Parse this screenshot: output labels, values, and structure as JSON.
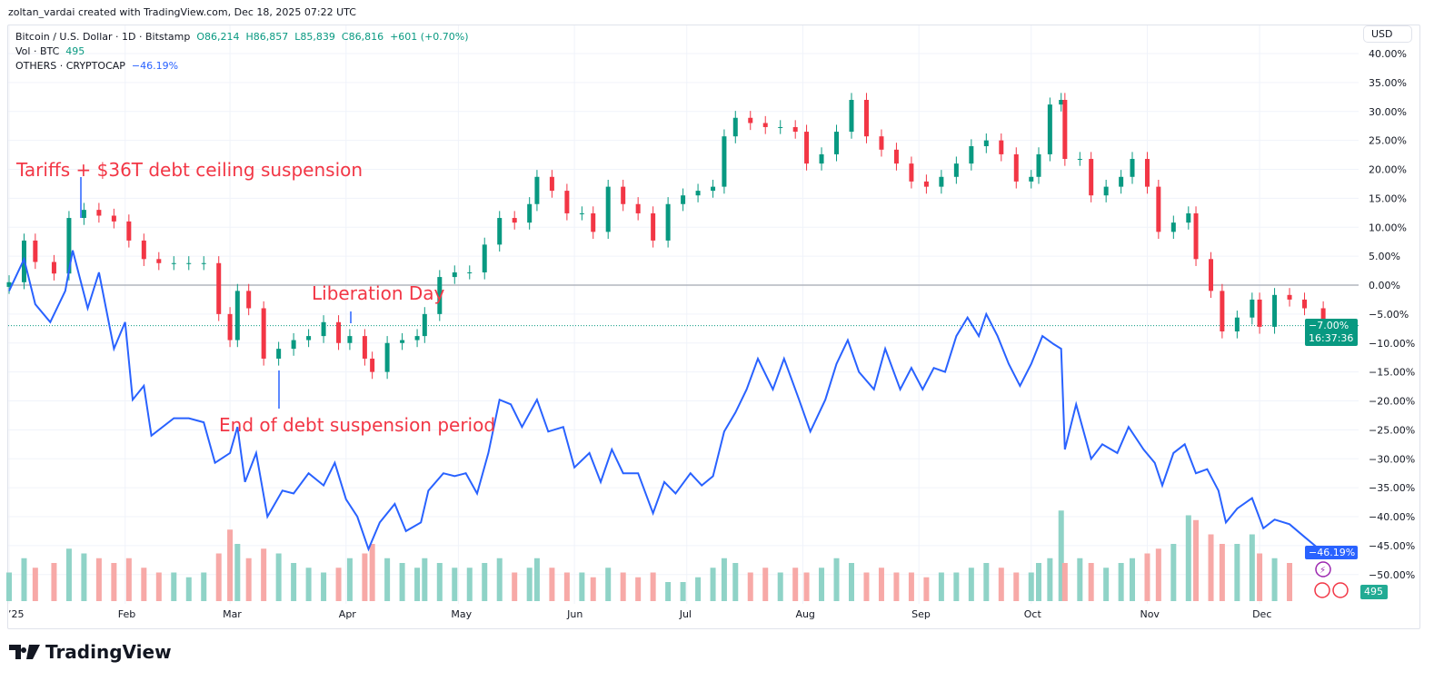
{
  "credit": "zoltan_vardai created with TradingView.com, Dec 18, 2025 07:22 UTC",
  "legend": {
    "symbol": "Bitcoin / U.S. Dollar · 1D · Bitstamp",
    "open": "O86,214",
    "high": "H86,857",
    "low": "L85,839",
    "close": "C86,816",
    "change": "+601 (+0.70%)",
    "vol_label": "Vol · BTC",
    "vol_value": "495",
    "compare_label": "OTHERS · CRYPTOCAP",
    "compare_value": "−46.19%"
  },
  "currency_button": "USD",
  "badges": {
    "btc_pct": "−7.00%",
    "countdown": "16:37:36",
    "others_pct": "−46.19%",
    "volume": "495"
  },
  "brand": "TradingView",
  "colors": {
    "up": "#089981",
    "down": "#f23645",
    "others": "#2962ff",
    "annotation": "#f23645",
    "volume_up": "#8fd3c7",
    "volume_down": "#f7a9a7"
  },
  "chart_data": {
    "type": "line",
    "yaxis": {
      "unit": "%",
      "ylim": [
        -52,
        41
      ],
      "ticks": [
        "40.00%",
        "35.00%",
        "30.00%",
        "25.00%",
        "20.00%",
        "15.00%",
        "10.00%",
        "5.00%",
        "0.00%",
        "−5.00%",
        "−10.00%",
        "−15.00%",
        "−20.00%",
        "−25.00%",
        "−30.00%",
        "−35.00%",
        "−40.00%",
        "−45.00%",
        "−50.00%"
      ]
    },
    "xaxis": {
      "ticks": [
        [
          "2025-01-01",
          "’25"
        ],
        [
          "2025-02-01",
          "Feb"
        ],
        [
          "2025-03-01",
          "Mar"
        ],
        [
          "2025-04-01",
          "Apr"
        ],
        [
          "2025-05-01",
          "May"
        ],
        [
          "2025-06-01",
          "Jun"
        ],
        [
          "2025-07-01",
          "Jul"
        ],
        [
          "2025-08-01",
          "Aug"
        ],
        [
          "2025-09-01",
          "Sep"
        ],
        [
          "2025-10-01",
          "Oct"
        ],
        [
          "2025-11-01",
          "Nov"
        ],
        [
          "2025-12-01",
          "Dec"
        ]
      ]
    },
    "grid": true,
    "series": [
      {
        "name": "Bitcoin / U.S. Dollar",
        "style": "candles",
        "points": [
          [
            "2025-01-01",
            0.5
          ],
          [
            "2025-01-05",
            7.7
          ],
          [
            "2025-01-08",
            4
          ],
          [
            "2025-01-13",
            2
          ],
          [
            "2025-01-17",
            11.6
          ],
          [
            "2025-01-21",
            13
          ],
          [
            "2025-01-25",
            12
          ],
          [
            "2025-01-29",
            11
          ],
          [
            "2025-02-02",
            7.7
          ],
          [
            "2025-02-06",
            4.5
          ],
          [
            "2025-02-10",
            3.8
          ],
          [
            "2025-02-14",
            3.8
          ],
          [
            "2025-02-18",
            3.8
          ],
          [
            "2025-02-22",
            3.8
          ],
          [
            "2025-02-26",
            -5
          ],
          [
            "2025-03-01",
            -9.5
          ],
          [
            "2025-03-03",
            -1
          ],
          [
            "2025-03-06",
            -4
          ],
          [
            "2025-03-10",
            -12.7
          ],
          [
            "2025-03-14",
            -11
          ],
          [
            "2025-03-18",
            -9.5
          ],
          [
            "2025-03-22",
            -8.8
          ],
          [
            "2025-03-26",
            -6.4
          ],
          [
            "2025-03-30",
            -10
          ],
          [
            "2025-04-02",
            -8.8
          ],
          [
            "2025-04-06",
            -12.7
          ],
          [
            "2025-04-08",
            -15
          ],
          [
            "2025-04-12",
            -10
          ],
          [
            "2025-04-16",
            -9.5
          ],
          [
            "2025-04-20",
            -8.8
          ],
          [
            "2025-04-22",
            -5
          ],
          [
            "2025-04-26",
            1.4
          ],
          [
            "2025-04-30",
            2.2
          ],
          [
            "2025-05-04",
            2.2
          ],
          [
            "2025-05-08",
            7
          ],
          [
            "2025-05-12",
            11.6
          ],
          [
            "2025-05-16",
            10.8
          ],
          [
            "2025-05-20",
            14
          ],
          [
            "2025-05-22",
            18.7
          ],
          [
            "2025-05-26",
            16.3
          ],
          [
            "2025-05-30",
            12.4
          ],
          [
            "2025-06-03",
            12.4
          ],
          [
            "2025-06-06",
            9.2
          ],
          [
            "2025-06-10",
            17
          ],
          [
            "2025-06-14",
            14
          ],
          [
            "2025-06-18",
            12.4
          ],
          [
            "2025-06-22",
            7.7
          ],
          [
            "2025-06-26",
            14
          ],
          [
            "2025-06-30",
            15.5
          ],
          [
            "2025-07-04",
            16.3
          ],
          [
            "2025-07-08",
            17
          ],
          [
            "2025-07-11",
            25.7
          ],
          [
            "2025-07-14",
            28.9
          ],
          [
            "2025-07-18",
            28
          ],
          [
            "2025-07-22",
            27.3
          ],
          [
            "2025-07-26",
            27.3
          ],
          [
            "2025-07-30",
            26.5
          ],
          [
            "2025-08-02",
            21
          ],
          [
            "2025-08-06",
            22.6
          ],
          [
            "2025-08-10",
            26.5
          ],
          [
            "2025-08-14",
            32
          ],
          [
            "2025-08-18",
            25.7
          ],
          [
            "2025-08-22",
            23.4
          ],
          [
            "2025-08-26",
            21
          ],
          [
            "2025-08-30",
            17.9
          ],
          [
            "2025-09-03",
            17
          ],
          [
            "2025-09-07",
            18.7
          ],
          [
            "2025-09-11",
            21
          ],
          [
            "2025-09-15",
            24
          ],
          [
            "2025-09-19",
            25
          ],
          [
            "2025-09-23",
            22.6
          ],
          [
            "2025-09-27",
            17.9
          ],
          [
            "2025-10-01",
            18.7
          ],
          [
            "2025-10-03",
            22.6
          ],
          [
            "2025-10-06",
            31.2
          ],
          [
            "2025-10-09",
            32
          ],
          [
            "2025-10-10",
            21.8
          ],
          [
            "2025-10-14",
            21.8
          ],
          [
            "2025-10-17",
            15.5
          ],
          [
            "2025-10-21",
            17
          ],
          [
            "2025-10-25",
            18.7
          ],
          [
            "2025-10-28",
            21.8
          ],
          [
            "2025-11-01",
            17
          ],
          [
            "2025-11-04",
            9.2
          ],
          [
            "2025-11-08",
            10.8
          ],
          [
            "2025-11-12",
            12.4
          ],
          [
            "2025-11-14",
            4.5
          ],
          [
            "2025-11-18",
            -1
          ],
          [
            "2025-11-21",
            -8
          ],
          [
            "2025-11-25",
            -5.6
          ],
          [
            "2025-11-29",
            -2.5
          ],
          [
            "2025-12-01",
            -7.2
          ],
          [
            "2025-12-05",
            -1.7
          ],
          [
            "2025-12-09",
            -2.5
          ],
          [
            "2025-12-13",
            -4
          ],
          [
            "2025-12-18",
            -7
          ]
        ]
      },
      {
        "name": "OTHERS · CRYPTOCAP",
        "style": "line",
        "points": [
          [
            "2025-01-01",
            -1
          ],
          [
            "2025-01-05",
            4.5
          ],
          [
            "2025-01-08",
            -3.3
          ],
          [
            "2025-01-12",
            -6.4
          ],
          [
            "2025-01-16",
            -1
          ],
          [
            "2025-01-18",
            6
          ],
          [
            "2025-01-22",
            -4
          ],
          [
            "2025-01-25",
            2.2
          ],
          [
            "2025-01-29",
            -11
          ],
          [
            "2025-02-01",
            -6.4
          ],
          [
            "2025-02-03",
            -19.8
          ],
          [
            "2025-02-06",
            -17.4
          ],
          [
            "2025-02-08",
            -26
          ],
          [
            "2025-02-14",
            -23
          ],
          [
            "2025-02-18",
            -23
          ],
          [
            "2025-02-22",
            -23.7
          ],
          [
            "2025-02-25",
            -30.7
          ],
          [
            "2025-03-01",
            -29
          ],
          [
            "2025-03-03",
            -24.5
          ],
          [
            "2025-03-05",
            -34
          ],
          [
            "2025-03-08",
            -29
          ],
          [
            "2025-03-11",
            -40
          ],
          [
            "2025-03-15",
            -35.5
          ],
          [
            "2025-03-18",
            -36
          ],
          [
            "2025-03-22",
            -32.5
          ],
          [
            "2025-03-26",
            -34.6
          ],
          [
            "2025-03-29",
            -30.7
          ],
          [
            "2025-04-01",
            -37
          ],
          [
            "2025-04-04",
            -40
          ],
          [
            "2025-04-07",
            -45.6
          ],
          [
            "2025-04-10",
            -41
          ],
          [
            "2025-04-14",
            -37.8
          ],
          [
            "2025-04-17",
            -42.5
          ],
          [
            "2025-04-21",
            -41
          ],
          [
            "2025-04-23",
            -35.5
          ],
          [
            "2025-04-27",
            -32.5
          ],
          [
            "2025-04-30",
            -33
          ],
          [
            "2025-05-03",
            -32.5
          ],
          [
            "2025-05-06",
            -36
          ],
          [
            "2025-05-09",
            -29
          ],
          [
            "2025-05-12",
            -19.8
          ],
          [
            "2025-05-15",
            -20.6
          ],
          [
            "2025-05-18",
            -24.5
          ],
          [
            "2025-05-22",
            -19.8
          ],
          [
            "2025-05-25",
            -25.3
          ],
          [
            "2025-05-29",
            -24.5
          ],
          [
            "2025-06-01",
            -31.5
          ],
          [
            "2025-06-05",
            -29
          ],
          [
            "2025-06-08",
            -34
          ],
          [
            "2025-06-11",
            -28.4
          ],
          [
            "2025-06-14",
            -32.5
          ],
          [
            "2025-06-18",
            -32.5
          ],
          [
            "2025-06-22",
            -39.4
          ],
          [
            "2025-06-25",
            -34
          ],
          [
            "2025-06-28",
            -36
          ],
          [
            "2025-07-02",
            -32.5
          ],
          [
            "2025-07-05",
            -34.6
          ],
          [
            "2025-07-08",
            -33
          ],
          [
            "2025-07-11",
            -25.3
          ],
          [
            "2025-07-14",
            -22
          ],
          [
            "2025-07-17",
            -18
          ],
          [
            "2025-07-20",
            -12.7
          ],
          [
            "2025-07-24",
            -18
          ],
          [
            "2025-07-27",
            -12.7
          ],
          [
            "2025-07-31",
            -19.8
          ],
          [
            "2025-08-03",
            -25.3
          ],
          [
            "2025-08-07",
            -19.8
          ],
          [
            "2025-08-10",
            -13.6
          ],
          [
            "2025-08-13",
            -9.5
          ],
          [
            "2025-08-16",
            -15
          ],
          [
            "2025-08-20",
            -18
          ],
          [
            "2025-08-23",
            -11
          ],
          [
            "2025-08-27",
            -18
          ],
          [
            "2025-08-30",
            -14.3
          ],
          [
            "2025-09-02",
            -18
          ],
          [
            "2025-09-05",
            -14.3
          ],
          [
            "2025-09-08",
            -15
          ],
          [
            "2025-09-11",
            -8.8
          ],
          [
            "2025-09-14",
            -5.6
          ],
          [
            "2025-09-17",
            -8.8
          ],
          [
            "2025-09-19",
            -5
          ],
          [
            "2025-09-22",
            -8.8
          ],
          [
            "2025-09-25",
            -13.6
          ],
          [
            "2025-09-28",
            -17.4
          ],
          [
            "2025-10-01",
            -13.6
          ],
          [
            "2025-10-04",
            -8.8
          ],
          [
            "2025-10-07",
            -10.2
          ],
          [
            "2025-10-09",
            -11
          ],
          [
            "2025-10-10",
            -28.4
          ],
          [
            "2025-10-13",
            -20.6
          ],
          [
            "2025-10-17",
            -30
          ],
          [
            "2025-10-20",
            -27.5
          ],
          [
            "2025-10-24",
            -29
          ],
          [
            "2025-10-27",
            -24.5
          ],
          [
            "2025-10-31",
            -28.4
          ],
          [
            "2025-11-03",
            -30.7
          ],
          [
            "2025-11-05",
            -34.6
          ],
          [
            "2025-11-08",
            -29
          ],
          [
            "2025-11-11",
            -27.5
          ],
          [
            "2025-11-14",
            -32.5
          ],
          [
            "2025-11-17",
            -31.8
          ],
          [
            "2025-11-20",
            -35.5
          ],
          [
            "2025-11-22",
            -41
          ],
          [
            "2025-11-25",
            -38.6
          ],
          [
            "2025-11-29",
            -36.8
          ],
          [
            "2025-12-02",
            -42
          ],
          [
            "2025-12-05",
            -40.5
          ],
          [
            "2025-12-09",
            -41.3
          ],
          [
            "2025-12-13",
            -43.5
          ],
          [
            "2025-12-18",
            -46.19
          ]
        ]
      }
    ],
    "volume": {
      "name": "Vol · BTC",
      "relative_levels": [
        30,
        45,
        35,
        40,
        55,
        50,
        45,
        40,
        45,
        35,
        30,
        30,
        25,
        30,
        50,
        75,
        60,
        45,
        55,
        50,
        40,
        35,
        30,
        35,
        45,
        50,
        60,
        45,
        40,
        35,
        45,
        40,
        35,
        35,
        40,
        45,
        30,
        35,
        45,
        35,
        30,
        30,
        25,
        35,
        30,
        25,
        30,
        20,
        20,
        25,
        35,
        45,
        40,
        30,
        35,
        30,
        35,
        30,
        35,
        45,
        40,
        30,
        35,
        30,
        30,
        25,
        30,
        30,
        35,
        40,
        35,
        30,
        30,
        40,
        45,
        95,
        40,
        45,
        40,
        35,
        40,
        45,
        50,
        55,
        60,
        90,
        85,
        70,
        60,
        60,
        70,
        50,
        45,
        40
      ]
    },
    "annotations": [
      {
        "text": "Tariffs + $36T debt ceiling suspension",
        "date": "2025-01-20"
      },
      {
        "text": "Liberation Day",
        "date": "2025-04-02"
      },
      {
        "text": "End of debt suspension period",
        "date": "2025-03-14"
      }
    ]
  }
}
